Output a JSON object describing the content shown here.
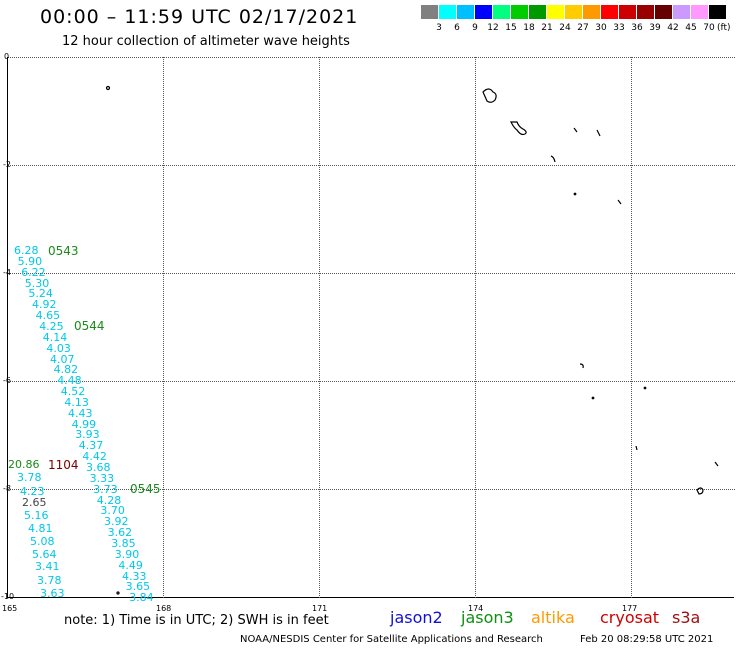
{
  "header": {
    "title": "00:00 – 11:59 UTC 02/17/2021",
    "subtitle": "12 hour collection of altimeter wave heights"
  },
  "legend": {
    "colors": [
      "#808080",
      "#00ffff",
      "#00bfff",
      "#0000ff",
      "#00ff80",
      "#00cc00",
      "#009900",
      "#ffff00",
      "#ffcc00",
      "#ff9900",
      "#ff0000",
      "#cc0000",
      "#990000",
      "#660000",
      "#cc99ff",
      "#ff99ff",
      "#000000"
    ],
    "labels": [
      "3",
      "6",
      "9",
      "12",
      "15",
      "18",
      "21",
      "24",
      "27",
      "30",
      "33",
      "36",
      "39",
      "42",
      "45",
      "70"
    ],
    "unit": "(ft)"
  },
  "map": {
    "y_labels": [
      "0",
      "-2",
      "-4",
      "-6",
      "-8",
      "-10"
    ],
    "x_labels": [
      "165",
      "168",
      "171",
      "174",
      "177"
    ]
  },
  "wave_heights": {
    "track_a": [
      "6.28",
      "5.90",
      "6.22",
      "5.30",
      "5.24",
      "4.92",
      "4.65",
      "4.25",
      "4.14",
      "4.03",
      "4.07",
      "4.82",
      "4.48",
      "4.52",
      "4.13",
      "4.43",
      "4.99",
      "3.93",
      "4.37",
      "4.42",
      "3.68",
      "3.33",
      "3.73",
      "4.28",
      "3.70",
      "3.92",
      "3.62",
      "3.85",
      "3.90",
      "4.49",
      "4.33",
      "3.65",
      "3.84"
    ],
    "track_b": [
      "3.78",
      "4.23",
      "2.65",
      "5.16",
      "4.81",
      "5.08",
      "5.64",
      "3.41",
      "3.78",
      "3.63"
    ],
    "track_c_value": "20.86",
    "pass_labels": [
      "0543",
      "0544",
      "0545",
      "1104"
    ]
  },
  "footer": {
    "note": "note:  1) Time is in UTC; 2) SWH is in feet",
    "satellites": [
      {
        "name": "jason2",
        "color": "#1010d0"
      },
      {
        "name": "jason3",
        "color": "#109010"
      },
      {
        "name": "altika",
        "color": "#ff9900"
      },
      {
        "name": "cryosat",
        "color": "#d00000"
      },
      {
        "name": "s3a",
        "color": "#a01010"
      }
    ],
    "credit": "NOAA/NESDIS Center for Satellite Applications and Research",
    "timestamp": "Feb 20 08:29:58 UTC 2021"
  }
}
